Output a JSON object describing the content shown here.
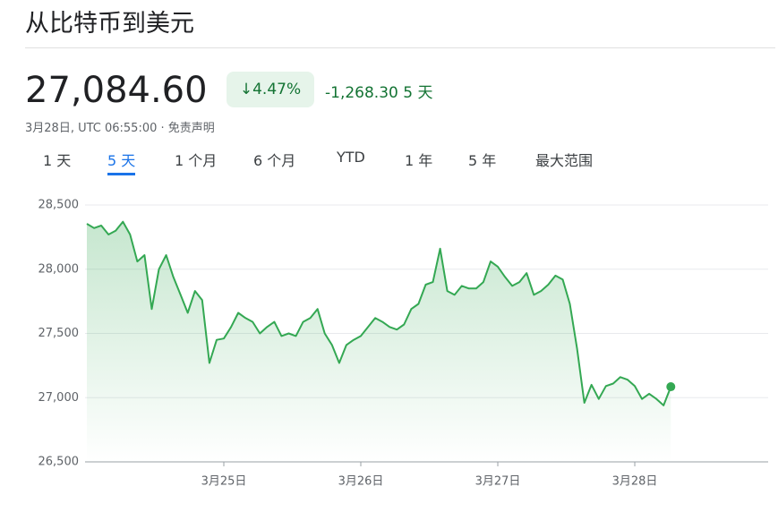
{
  "header": {
    "title": "从比特币到美元",
    "price": "27,084.60",
    "change_arrow": "↓",
    "change_percent": "4.47%",
    "change_value": "-1,268.30",
    "change_period": "5 天",
    "timestamp": "3月28日, UTC 06:55:00",
    "disclaimer": "免责声明"
  },
  "tabs": {
    "items": [
      "1 天",
      "5 天",
      "1 个月",
      "6 个月",
      "YTD",
      "1 年",
      "5 年",
      "最大范围"
    ],
    "selected": 1
  },
  "chart_data": {
    "type": "line",
    "series": [
      {
        "color": "#34a853",
        "values": [
          28354,
          28320,
          28340,
          28270,
          28300,
          28370,
          28270,
          28060,
          28110,
          27690,
          28000,
          28110,
          27940,
          27800,
          27660,
          27830,
          27760,
          27270,
          27450,
          27460,
          27550,
          27660,
          27620,
          27590,
          27500,
          27550,
          27590,
          27480,
          27500,
          27480,
          27590,
          27620,
          27690,
          27500,
          27410,
          27270,
          27410,
          27450,
          27480,
          27550,
          27620,
          27590,
          27550,
          27530,
          27570,
          27690,
          27730,
          27880,
          27900,
          28160,
          27830,
          27800,
          27870,
          27850,
          27850,
          27900,
          28060,
          28020,
          27940,
          27870,
          27900,
          27970,
          27800,
          27830,
          27880,
          27950,
          27920,
          27730,
          27380,
          26960,
          27100,
          26990,
          27090,
          27110,
          27160,
          27140,
          27090,
          26990,
          27030,
          26990,
          26940,
          27085
        ]
      }
    ],
    "xlim": [
      0,
      94.5
    ],
    "xticks": [
      {
        "value": 19,
        "label": "3月25日"
      },
      {
        "value": 38,
        "label": "3月26日"
      },
      {
        "value": 57,
        "label": "3月27日"
      },
      {
        "value": 76,
        "label": "3月28日"
      }
    ],
    "ylim": [
      26500,
      28500
    ],
    "yticks": [
      {
        "value": 26500,
        "label": "26,500"
      },
      {
        "value": 27000,
        "label": "27,000"
      },
      {
        "value": 27500,
        "label": "27,500"
      },
      {
        "value": 28000,
        "label": "28,000"
      },
      {
        "value": 28500,
        "label": "28,500"
      }
    ],
    "grid": true
  }
}
